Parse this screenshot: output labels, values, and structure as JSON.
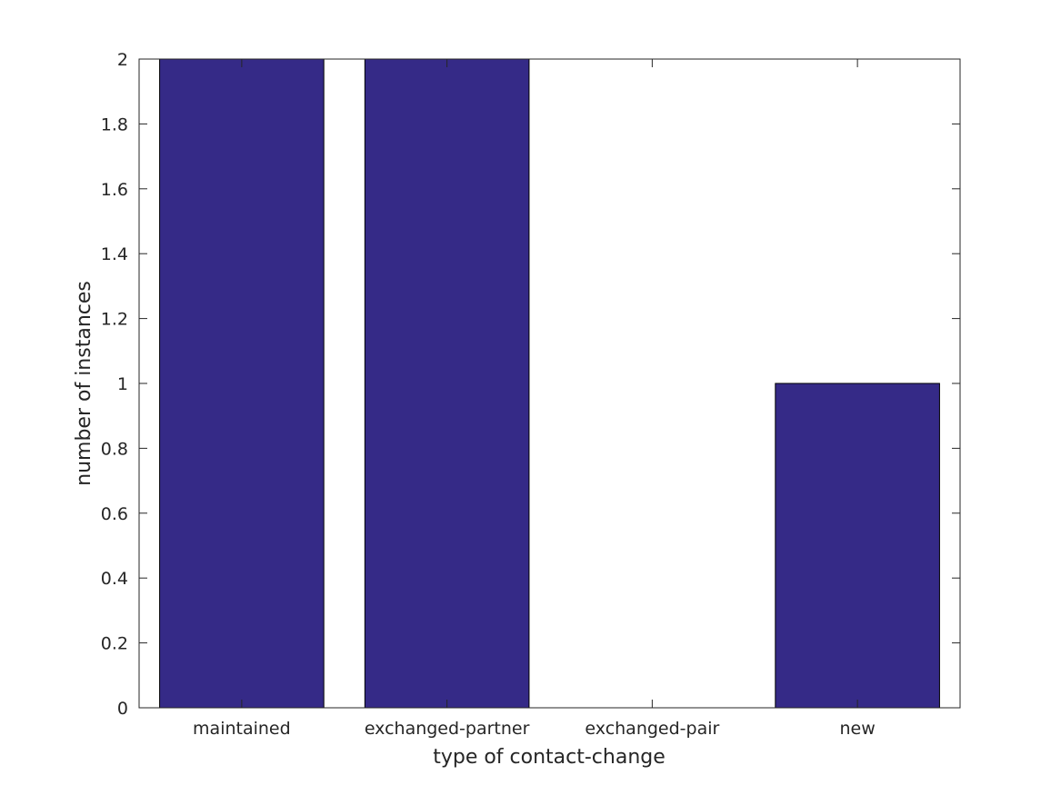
{
  "chart_data": {
    "type": "bar",
    "categories": [
      "maintained",
      "exchanged-partner",
      "exchanged-pair",
      "new"
    ],
    "values": [
      2,
      2,
      0,
      1
    ],
    "xlabel": "type of contact-change",
    "ylabel": "number of instances",
    "ylim": [
      0,
      2
    ],
    "yticks": [
      0,
      0.2,
      0.4,
      0.6,
      0.8,
      1,
      1.2,
      1.4,
      1.6,
      1.8,
      2
    ],
    "ytick_labels": [
      "0",
      "0.2",
      "0.4",
      "0.6",
      "0.8",
      "1",
      "1.2",
      "1.4",
      "1.6",
      "1.8",
      "2"
    ],
    "grid": false,
    "bar_color": "#352a87",
    "edge_color": "#000000"
  }
}
